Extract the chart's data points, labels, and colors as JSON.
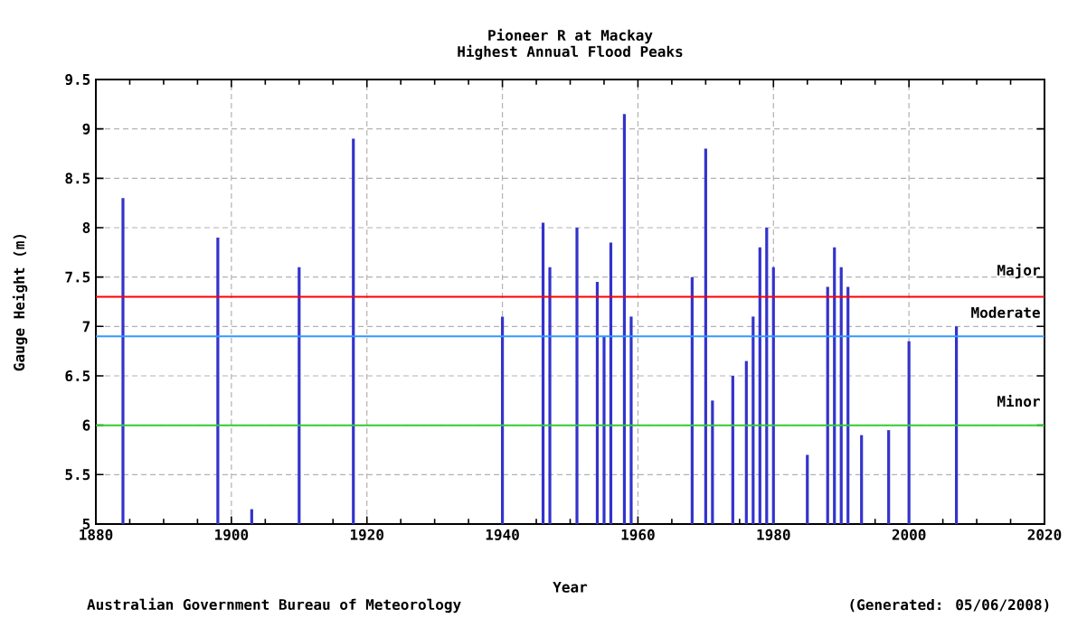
{
  "chart_data": {
    "type": "bar",
    "title": "Pioneer R at Mackay",
    "subtitle": "Highest Annual Flood Peaks",
    "xlabel": "Year",
    "ylabel": "Gauge Height (m)",
    "annotations": [
      "Australian Government Bureau of Meteorology",
      "(Generated: 05/06/2008)"
    ],
    "x": [
      1884,
      1898,
      1903,
      1910,
      1918,
      1940,
      1946,
      1947,
      1951,
      1954,
      1955,
      1956,
      1958,
      1959,
      1968,
      1970,
      1971,
      1974,
      1976,
      1977,
      1978,
      1979,
      1980,
      1985,
      1988,
      1989,
      1990,
      1991,
      1993,
      1997,
      2000,
      2007
    ],
    "values": [
      8.3,
      7.9,
      5.15,
      7.6,
      8.9,
      7.1,
      8.05,
      7.6,
      8.0,
      7.45,
      6.9,
      7.85,
      9.15,
      7.1,
      7.5,
      8.8,
      6.25,
      6.5,
      6.65,
      7.1,
      7.8,
      8.0,
      7.6,
      5.7,
      7.4,
      7.8,
      7.6,
      7.4,
      5.9,
      5.95,
      6.85,
      7.0
    ],
    "color": "#3333cc",
    "xlim": [
      1880,
      2020
    ],
    "xticks": [
      1880,
      1900,
      1920,
      1940,
      1960,
      1980,
      2000,
      2020
    ],
    "ylim": [
      5,
      9.5
    ],
    "yticks": [
      5,
      5.5,
      6,
      6.5,
      7,
      7.5,
      8,
      8.5,
      9,
      9.5
    ],
    "grid": true,
    "ref_lines": [
      {
        "axis": "y",
        "value": 7.3,
        "label": "Major",
        "color": "#ff0000"
      },
      {
        "axis": "y",
        "value": 6.9,
        "label": "Moderate",
        "color": "#3399ff"
      },
      {
        "axis": "y",
        "value": 6.0,
        "label": "Minor",
        "color": "#33cc33"
      }
    ]
  }
}
